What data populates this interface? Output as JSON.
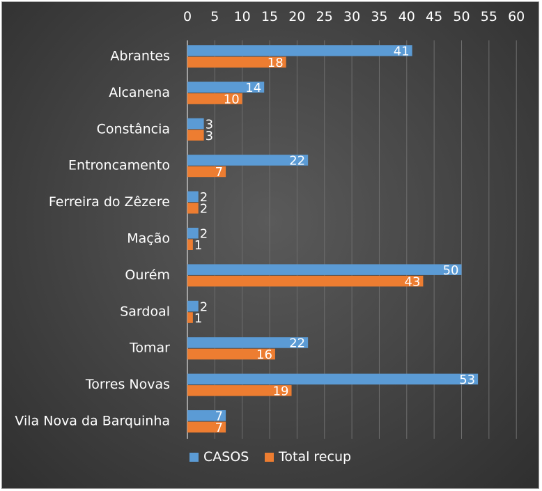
{
  "chart_data": {
    "type": "bar",
    "orientation": "horizontal",
    "categories": [
      "Abrantes",
      "Alcanena",
      "Constância",
      "Entroncamento",
      "Ferreira do Zêzere",
      "Mação",
      "Ourém",
      "Sardoal",
      "Tomar",
      "Torres Novas",
      "Vila Nova da Barquinha"
    ],
    "series": [
      {
        "name": "CASOS",
        "color": "#5b9bd5",
        "values": [
          41,
          14,
          3,
          22,
          2,
          2,
          50,
          2,
          22,
          53,
          7
        ]
      },
      {
        "name": "Total recup",
        "color": "#ed7d31",
        "values": [
          18,
          10,
          3,
          7,
          2,
          1,
          43,
          1,
          16,
          19,
          7
        ]
      }
    ],
    "xlim": [
      0,
      60
    ],
    "xticks": [
      0,
      5,
      10,
      15,
      20,
      25,
      30,
      35,
      40,
      45,
      50,
      55,
      60
    ],
    "x_axis_position": "top",
    "grid": true,
    "legend_position": "bottom",
    "title": "",
    "xlabel": "",
    "ylabel": ""
  }
}
